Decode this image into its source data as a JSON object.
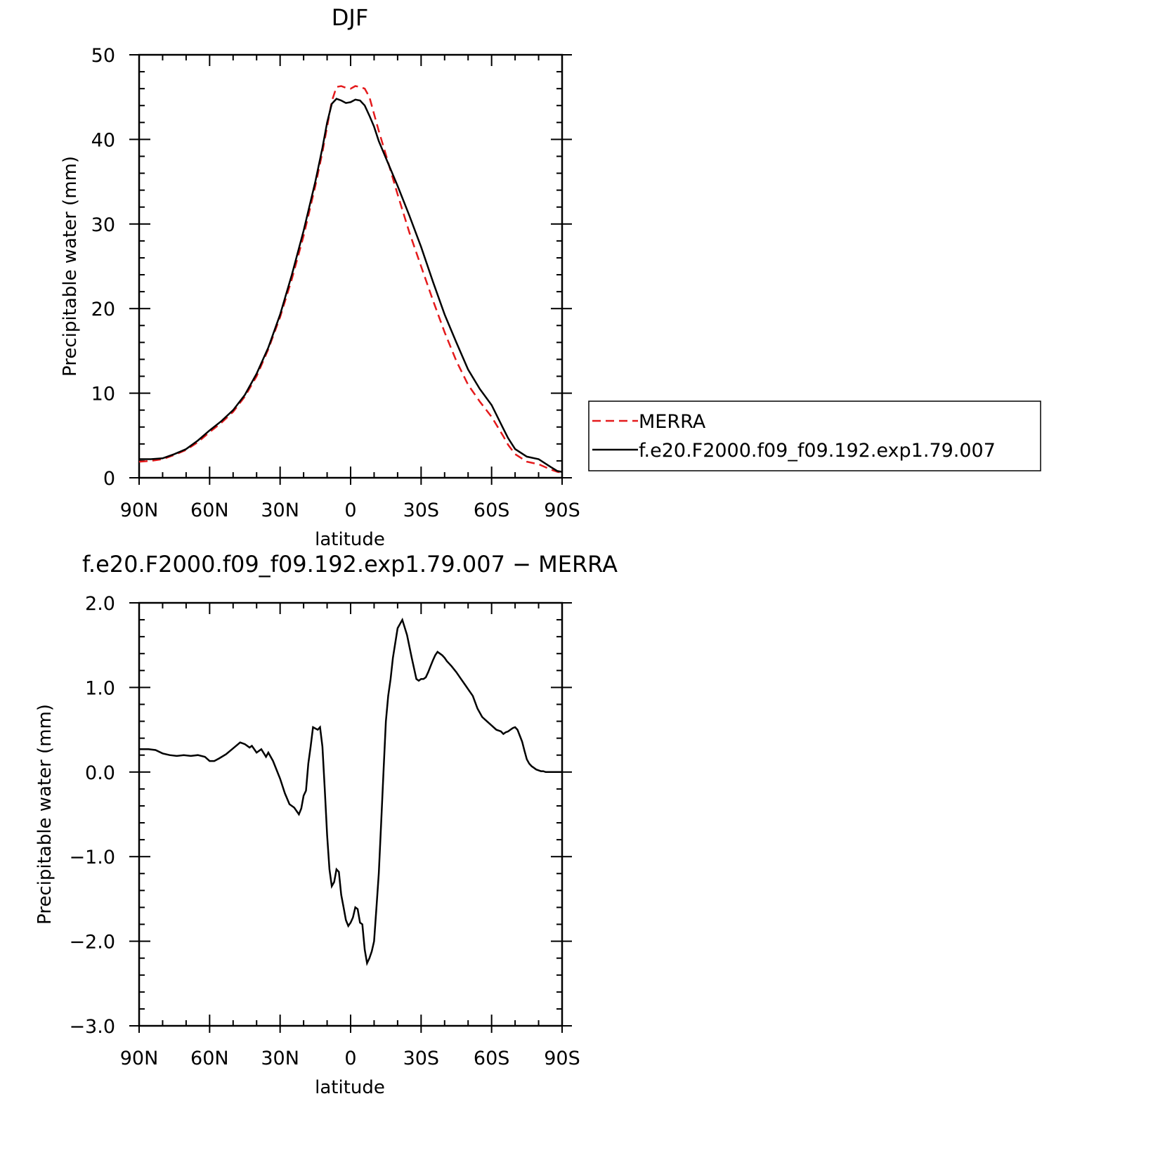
{
  "chart_data": [
    {
      "type": "line",
      "title": "DJF",
      "xlabel": "latitude",
      "ylabel": "Precipitable water (mm)",
      "x_ticks": [
        "90N",
        "60N",
        "30N",
        "0",
        "30S",
        "60S",
        "90S"
      ],
      "x_tick_values": [
        90,
        60,
        30,
        0,
        -30,
        -60,
        -90
      ],
      "xlim": [
        90,
        -90
      ],
      "y_ticks": [
        "0",
        "10",
        "20",
        "30",
        "40",
        "50"
      ],
      "y_tick_values": [
        0,
        10,
        20,
        30,
        40,
        50
      ],
      "ylim": [
        0,
        50
      ],
      "grid": false,
      "legend": "right",
      "series": [
        {
          "name": "MERRA",
          "color": "#e41a1c",
          "style": "dashed",
          "x": [
            90,
            85,
            80,
            75,
            70,
            65,
            60,
            55,
            50,
            45,
            40,
            35,
            30,
            25,
            20,
            15,
            12,
            10,
            8,
            6,
            4,
            2,
            0,
            -2,
            -4,
            -6,
            -8,
            -10,
            -12,
            -15,
            -20,
            -25,
            -30,
            -35,
            -40,
            -45,
            -50,
            -55,
            -60,
            -65,
            -67,
            -70,
            -75,
            -80,
            -85,
            -88,
            -90
          ],
          "values": [
            1.9,
            2.0,
            2.2,
            2.7,
            3.3,
            4.2,
            5.4,
            6.5,
            7.8,
            9.6,
            12.0,
            15.2,
            19.0,
            23.5,
            28.6,
            34.5,
            38.5,
            41.5,
            44.5,
            46.2,
            46.3,
            46.1,
            46.0,
            46.3,
            46.2,
            46.0,
            45.0,
            43.0,
            41.0,
            38.2,
            33.5,
            29.0,
            25.0,
            21.0,
            17.2,
            13.8,
            11.0,
            9.0,
            7.2,
            4.9,
            3.9,
            2.8,
            1.9,
            1.6,
            1.0,
            0.7,
            0.6
          ]
        },
        {
          "name": "f.e20.F2000.f09_f09.192.exp1.79.007",
          "color": "#000000",
          "style": "solid",
          "x": [
            90,
            85,
            80,
            75,
            70,
            65,
            60,
            55,
            50,
            45,
            40,
            35,
            30,
            25,
            20,
            15,
            12,
            10,
            8,
            6,
            4,
            2,
            0,
            -2,
            -4,
            -6,
            -8,
            -10,
            -12,
            -15,
            -20,
            -25,
            -30,
            -35,
            -40,
            -45,
            -50,
            -55,
            -60,
            -65,
            -67,
            -70,
            -75,
            -80,
            -85,
            -88,
            -90
          ],
          "values": [
            2.2,
            2.2,
            2.3,
            2.8,
            3.4,
            4.4,
            5.6,
            6.7,
            8.0,
            9.8,
            12.3,
            15.4,
            19.3,
            24.0,
            29.2,
            35.0,
            39.0,
            42.0,
            44.2,
            44.8,
            44.6,
            44.3,
            44.4,
            44.7,
            44.6,
            44.0,
            42.8,
            41.5,
            39.8,
            37.8,
            34.5,
            31.0,
            27.3,
            23.2,
            19.3,
            16.0,
            12.8,
            10.5,
            8.6,
            5.8,
            4.7,
            3.4,
            2.5,
            2.2,
            1.3,
            0.8,
            0.7
          ]
        }
      ]
    },
    {
      "type": "line",
      "title": "f.e20.F2000.f09_f09.192.exp1.79.007 − MERRA",
      "xlabel": "latitude",
      "ylabel": "Precipitable water (mm)",
      "x_ticks": [
        "90N",
        "60N",
        "30N",
        "0",
        "30S",
        "60S",
        "90S"
      ],
      "x_tick_values": [
        90,
        60,
        30,
        0,
        -30,
        -60,
        -90
      ],
      "xlim": [
        90,
        -90
      ],
      "y_ticks": [
        "2.0",
        "1.0",
        "0.0",
        "−1.0",
        "−2.0",
        "−3.0"
      ],
      "y_tick_values": [
        2,
        1,
        0,
        -1,
        -2,
        -3
      ],
      "ylim": [
        -3,
        2
      ],
      "grid": false,
      "series": [
        {
          "color": "#000000",
          "style": "solid",
          "x": [
            90,
            86,
            83,
            80,
            77,
            74,
            71,
            68,
            65,
            62,
            60,
            58,
            56,
            53,
            50,
            47,
            45,
            43,
            42,
            40,
            38,
            36,
            35,
            33,
            32,
            30,
            28,
            26,
            24,
            22,
            21,
            20,
            19,
            18,
            17,
            16,
            14,
            13,
            12,
            11,
            10,
            9,
            8,
            7,
            6,
            5,
            4,
            3,
            2,
            1,
            0,
            -1,
            -2,
            -3,
            -4,
            -5,
            -6,
            -7,
            -8,
            -9,
            -10,
            -11,
            -12,
            -13,
            -14,
            -15,
            -16,
            -17,
            -18,
            -20,
            -22,
            -24,
            -26,
            -28,
            -29,
            -30,
            -31,
            -32,
            -33,
            -34,
            -35,
            -36,
            -37,
            -38,
            -39,
            -40,
            -41,
            -42,
            -43,
            -45,
            -47,
            -49,
            -50,
            -52,
            -54,
            -56,
            -58,
            -60,
            -62,
            -64,
            -65,
            -66,
            -67,
            -68,
            -69,
            -70,
            -71,
            -72,
            -73,
            -74,
            -75,
            -76,
            -77,
            -78,
            -79,
            -80,
            -81,
            -82,
            -83,
            -84,
            -85,
            -86,
            -87,
            -88,
            -89,
            -90
          ],
          "values": [
            0.27,
            0.27,
            0.26,
            0.22,
            0.2,
            0.19,
            0.2,
            0.19,
            0.2,
            0.18,
            0.13,
            0.13,
            0.16,
            0.21,
            0.28,
            0.35,
            0.33,
            0.29,
            0.31,
            0.23,
            0.27,
            0.18,
            0.23,
            0.13,
            0.06,
            -0.08,
            -0.25,
            -0.38,
            -0.42,
            -0.5,
            -0.43,
            -0.28,
            -0.22,
            0.1,
            0.3,
            0.53,
            0.5,
            0.53,
            0.3,
            -0.2,
            -0.75,
            -1.15,
            -1.35,
            -1.3,
            -1.15,
            -1.18,
            -1.45,
            -1.6,
            -1.75,
            -1.82,
            -1.78,
            -1.72,
            -1.6,
            -1.62,
            -1.78,
            -1.8,
            -2.1,
            -2.26,
            -2.2,
            -2.12,
            -2.0,
            -1.6,
            -1.2,
            -0.6,
            0.0,
            0.6,
            0.9,
            1.1,
            1.35,
            1.7,
            1.8,
            1.62,
            1.35,
            1.1,
            1.08,
            1.1,
            1.1,
            1.12,
            1.18,
            1.25,
            1.32,
            1.38,
            1.42,
            1.4,
            1.38,
            1.35,
            1.31,
            1.28,
            1.25,
            1.18,
            1.1,
            1.02,
            0.98,
            0.9,
            0.75,
            0.65,
            0.6,
            0.55,
            0.5,
            0.48,
            0.45,
            0.47,
            0.48,
            0.5,
            0.52,
            0.53,
            0.5,
            0.43,
            0.36,
            0.25,
            0.15,
            0.1,
            0.07,
            0.05,
            0.03,
            0.02,
            0.01,
            0.01,
            0.0,
            0.0,
            0.0,
            0.0,
            0.0,
            0.0,
            0.0,
            0.0
          ],
          "note_values": []
        }
      ]
    }
  ]
}
